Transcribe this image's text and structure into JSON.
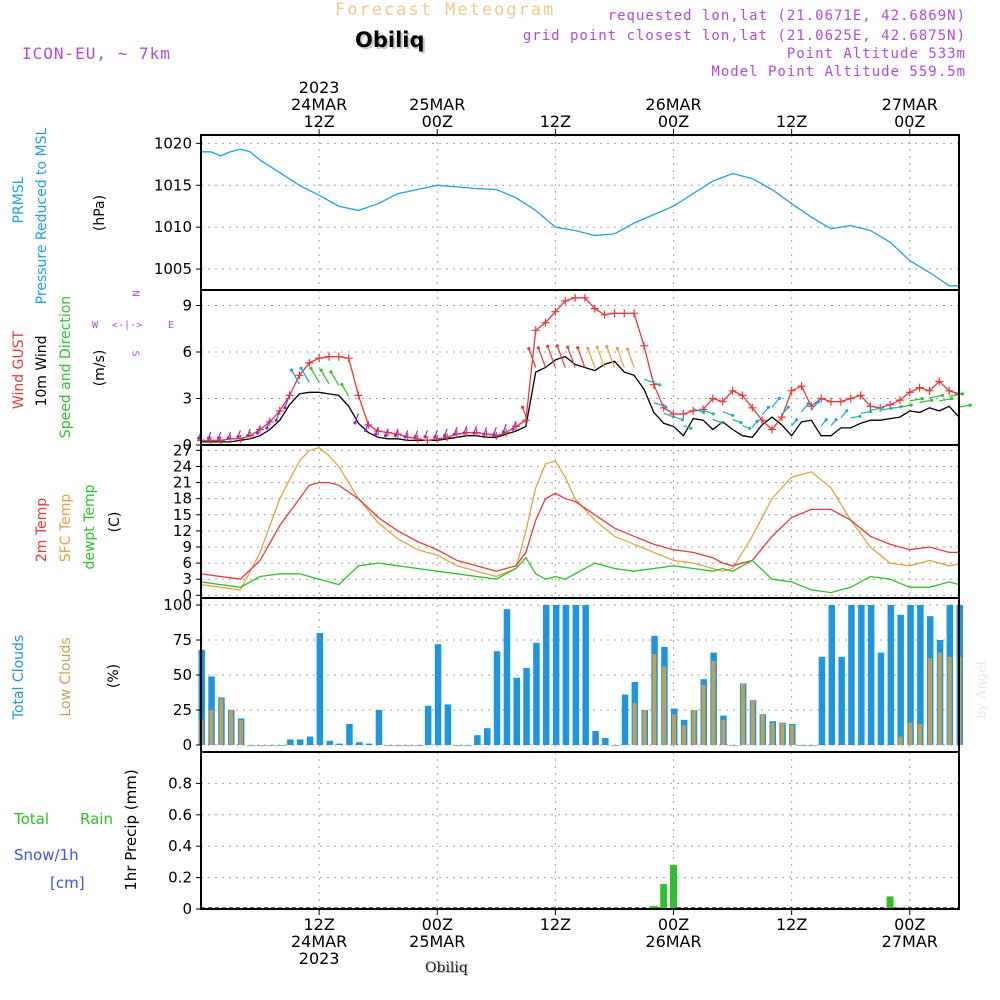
{
  "header": {
    "forecast_label": "Forecast Meteogram",
    "station": "Obiliq",
    "model": "ICON-EU, ~ 7km",
    "requested": "requested lon,lat (21.0671E, 42.6869N)",
    "gridpoint": "grid point closest lon,lat (21.0625E, 42.6875N)",
    "point_alt": "Point Altitude 533m",
    "model_alt": "Model Point Altitude 559.5m",
    "footer_station": "Obiliq",
    "watermark": "by Angel",
    "colors": {
      "forecast": "#f2c888",
      "meta": "#b04ae0"
    }
  },
  "time_axis": {
    "top": [
      {
        "h": 12,
        "lines": [
          "2023",
          "24MAR",
          "12Z"
        ]
      },
      {
        "h": 24,
        "lines": [
          "25MAR",
          "00Z"
        ]
      },
      {
        "h": 36,
        "lines": [
          "12Z"
        ]
      },
      {
        "h": 48,
        "lines": [
          "26MAR",
          "00Z"
        ]
      },
      {
        "h": 60,
        "lines": [
          "12Z"
        ]
      },
      {
        "h": 72,
        "lines": [
          "27MAR",
          "00Z"
        ]
      }
    ],
    "bottom": [
      {
        "h": 12,
        "lines": [
          "12Z",
          "24MAR",
          "2023"
        ]
      },
      {
        "h": 24,
        "lines": [
          "00Z",
          "25MAR"
        ]
      },
      {
        "h": 36,
        "lines": [
          "12Z"
        ]
      },
      {
        "h": 48,
        "lines": [
          "00Z",
          "26MAR"
        ]
      },
      {
        "h": 60,
        "lines": [
          "12Z"
        ]
      },
      {
        "h": 72,
        "lines": [
          "00Z",
          "27MAR"
        ]
      }
    ]
  },
  "panel_labels": {
    "pressure": {
      "l1": "PRMSL",
      "l2": "Pressure Reduced to MSL",
      "unit": "(hPa)"
    },
    "wind": {
      "gust": "Wind GUST",
      "w10": "10m Wind",
      "spd": "Speed and Direction",
      "unit": "(m/s)",
      "compass": {
        "n": "N",
        "s": "S",
        "w": "W",
        "e": "E",
        "arrows": "<-|->"
      }
    },
    "temp": {
      "t2m": "2m Temp",
      "sfc": "SFC Temp",
      "dew": "dewpt Temp",
      "unit": "(C)"
    },
    "clouds": {
      "total": "Total Clouds",
      "low": "Low Clouds",
      "unit": "(%)"
    },
    "precip": {
      "unit": "1hr Precip (mm)",
      "total": "Total",
      "rain": "Rain",
      "snow": "Snow/1h",
      "snow_unit": "[cm]"
    }
  },
  "colors": {
    "pressure": "#1ba1e2",
    "gust": "#e8383a",
    "wind10": "#000000",
    "t2m": "#e8383a",
    "sfc": "#e0a43c",
    "dew": "#2ec02e",
    "total_cloud": "#1c96e0",
    "low_cloud": "#c8a050",
    "rain": "#2ec02e",
    "snow": "#3c50f0",
    "compass": "#b04ae0",
    "grid": "#a0a0a0"
  },
  "chart_data": [
    {
      "type": "line",
      "name": "pressure",
      "title": "PRMSL Pressure Reduced to MSL",
      "ylabel": "(hPa)",
      "ylim": [
        1002.5,
        1021
      ],
      "yticks": [
        1005,
        1010,
        1015,
        1020
      ],
      "x": [
        0,
        1,
        2,
        3,
        4,
        5,
        6,
        8,
        10,
        12,
        14,
        16,
        18,
        20,
        22,
        24,
        26,
        28,
        30,
        32,
        34,
        36,
        38,
        40,
        42,
        44,
        46,
        48,
        50,
        52,
        54,
        56,
        58,
        60,
        62,
        64,
        66,
        68,
        70,
        72,
        74,
        76,
        77
      ],
      "values": [
        1019,
        1019,
        1018.5,
        1019,
        1019.3,
        1019,
        1018,
        1016.5,
        1015,
        1013.8,
        1012.5,
        1012,
        1012.8,
        1014,
        1014.5,
        1015,
        1014.8,
        1014.6,
        1014.5,
        1013.5,
        1012,
        1010,
        1009.6,
        1009,
        1009.2,
        1010.5,
        1011.5,
        1012.5,
        1014,
        1015.5,
        1016.4,
        1015.8,
        1014.5,
        1012.8,
        1011.2,
        1009.8,
        1010.2,
        1009.6,
        1008.2,
        1006,
        1004.6,
        1003,
        1003
      ]
    },
    {
      "type": "line",
      "name": "wind",
      "title": "Wind GUST / 10m Wind Speed and Direction",
      "ylabel": "(m/s)",
      "ylim": [
        0,
        10
      ],
      "yticks": [
        0,
        3,
        6,
        9
      ],
      "x": [
        0,
        1,
        2,
        3,
        4,
        5,
        6,
        7,
        8,
        9,
        10,
        11,
        12,
        13,
        14,
        15,
        16,
        17,
        18,
        19,
        20,
        21,
        22,
        23,
        24,
        25,
        26,
        27,
        28,
        29,
        30,
        31,
        32,
        33,
        34,
        35,
        36,
        37,
        38,
        39,
        40,
        41,
        42,
        43,
        44,
        45,
        46,
        47,
        48,
        49,
        50,
        51,
        52,
        53,
        54,
        55,
        56,
        57,
        58,
        59,
        60,
        61,
        62,
        63,
        64,
        65,
        66,
        67,
        68,
        69,
        70,
        71,
        72,
        73,
        74,
        75,
        76,
        77
      ],
      "series": [
        {
          "name": "Wind GUST",
          "values": [
            0.3,
            0.3,
            0.3,
            0.4,
            0.4,
            0.6,
            1,
            1.5,
            2.2,
            3.2,
            4.5,
            5.3,
            5.6,
            5.7,
            5.7,
            5.6,
            3.2,
            1.3,
            0.9,
            0.8,
            0.7,
            0.5,
            0.4,
            0.3,
            0.4,
            0.5,
            0.7,
            0.8,
            0.8,
            0.7,
            0.6,
            0.8,
            1.2,
            1.6,
            7.4,
            7.9,
            8.6,
            9.3,
            9.5,
            9.5,
            8.8,
            8.4,
            8.5,
            8.5,
            8.5,
            6.4,
            3.9,
            2.4,
            2.0,
            2.0,
            2.2,
            2.3,
            3.0,
            2.8,
            3.5,
            3.2,
            2.4,
            1.6,
            1.0,
            1.8,
            3.5,
            3.8,
            2.5,
            3.0,
            2.8,
            2.8,
            3.0,
            3.2,
            2.5,
            2.4,
            2.6,
            2.9,
            3.4,
            3.7,
            3.5,
            4.1,
            3.5,
            3.3
          ]
        },
        {
          "name": "10m Wind",
          "values": [
            0.2,
            0.2,
            0.2,
            0.2,
            0.3,
            0.4,
            0.6,
            1,
            1.6,
            2.6,
            3.3,
            3.4,
            3.4,
            3.3,
            3.2,
            2.5,
            1.4,
            0.8,
            0.5,
            0.4,
            0.4,
            0.3,
            0.3,
            0.3,
            0.3,
            0.4,
            0.5,
            0.6,
            0.6,
            0.5,
            0.5,
            0.7,
            0.9,
            1.2,
            4.7,
            5,
            5.5,
            5.7,
            5.2,
            5.0,
            4.8,
            5.2,
            5.4,
            4.7,
            4.5,
            3.6,
            2.1,
            1.4,
            1.2,
            0.6,
            1.7,
            1.6,
            1.0,
            1.5,
            1.0,
            0.6,
            0.5,
            1.3,
            1.8,
            1.3,
            0.6,
            1.5,
            1.6,
            0.6,
            0.6,
            1.1,
            1.1,
            1.4,
            1.6,
            1.6,
            1.7,
            1.8,
            2.2,
            2.1,
            2.4,
            2.2,
            2.5,
            1.8
          ]
        }
      ]
    },
    {
      "type": "line",
      "name": "temperature",
      "title": "2m Temp / SFC Temp / dewpt Temp",
      "ylabel": "(C)",
      "ylim": [
        -0.5,
        28
      ],
      "yticks": [
        0,
        3,
        6,
        9,
        12,
        15,
        18,
        21,
        24,
        27
      ],
      "x": [
        0,
        2,
        4,
        6,
        8,
        10,
        11,
        12,
        13,
        14,
        16,
        18,
        20,
        22,
        24,
        26,
        28,
        30,
        32,
        33,
        34,
        35,
        36,
        37,
        38,
        40,
        42,
        44,
        46,
        48,
        50,
        52,
        53,
        54,
        56,
        58,
        60,
        62,
        64,
        66,
        68,
        70,
        72,
        74,
        76,
        77
      ],
      "series": [
        {
          "name": "2m Temp",
          "values": [
            4,
            3.5,
            3,
            6.5,
            13,
            18,
            20.5,
            21,
            21,
            20.5,
            18,
            14.5,
            12,
            10,
            8.5,
            6.5,
            5.5,
            4.5,
            5.5,
            8,
            14,
            18,
            19,
            18,
            17.5,
            15,
            12.5,
            11,
            9.5,
            8.5,
            8,
            7,
            6,
            5.5,
            6.5,
            11,
            14.5,
            16,
            16,
            14,
            11,
            9.5,
            8.5,
            9,
            8,
            8
          ]
        },
        {
          "name": "SFC Temp",
          "values": [
            2,
            1.5,
            1,
            8,
            18,
            25,
            27,
            27.5,
            26,
            24,
            18,
            13.5,
            10.5,
            8.5,
            7.5,
            5.5,
            4.5,
            3.5,
            5,
            12,
            20,
            24.5,
            25,
            22,
            18,
            14,
            11,
            9.5,
            8,
            6.5,
            6,
            5,
            4.5,
            5,
            11,
            18,
            22,
            23,
            20,
            14,
            9,
            6,
            5.5,
            6.5,
            5.5,
            5.8
          ]
        },
        {
          "name": "dewpt Temp",
          "values": [
            2.5,
            2,
            1.5,
            3.5,
            4,
            4,
            3.5,
            3,
            2.5,
            2,
            5.5,
            6,
            5.5,
            5,
            4.5,
            4,
            3.5,
            3,
            5,
            7,
            4,
            3,
            3.5,
            3,
            4,
            6,
            5,
            4.5,
            5,
            5.5,
            5,
            4.5,
            5,
            4.5,
            6.5,
            3,
            2.5,
            1,
            0.5,
            1.5,
            3.5,
            3,
            1.5,
            1.5,
            2.5,
            2
          ]
        }
      ]
    },
    {
      "type": "bar",
      "name": "clouds",
      "title": "Total Clouds / Low Clouds",
      "ylabel": "(%)",
      "ylim": [
        -5,
        105
      ],
      "yticks": [
        0,
        25,
        50,
        75,
        100
      ],
      "x": [
        0,
        1,
        2,
        3,
        4,
        5,
        6,
        7,
        8,
        9,
        10,
        11,
        12,
        13,
        14,
        15,
        16,
        17,
        18,
        19,
        20,
        21,
        22,
        23,
        24,
        25,
        26,
        27,
        28,
        29,
        30,
        31,
        32,
        33,
        34,
        35,
        36,
        37,
        38,
        39,
        40,
        41,
        42,
        43,
        44,
        45,
        46,
        47,
        48,
        49,
        50,
        51,
        52,
        53,
        54,
        55,
        56,
        57,
        58,
        59,
        60,
        61,
        62,
        63,
        64,
        65,
        66,
        67,
        68,
        69,
        70,
        71,
        72,
        73,
        74,
        75,
        76,
        77
      ],
      "series": [
        {
          "name": "Total Clouds",
          "values": [
            68,
            49,
            34,
            25,
            19,
            0,
            0,
            0,
            0,
            4,
            4,
            6,
            80,
            3,
            1,
            15,
            2,
            1,
            25,
            0,
            0,
            0,
            0,
            28,
            72,
            29,
            0,
            0,
            7,
            12,
            67,
            97,
            48,
            55,
            73,
            100,
            100,
            100,
            100,
            100,
            10,
            5,
            0,
            36,
            45,
            25,
            78,
            70,
            26,
            18,
            25,
            47,
            66,
            21,
            0,
            44,
            32,
            22,
            17,
            16,
            15,
            0,
            0,
            63,
            100,
            63,
            100,
            100,
            100,
            66,
            100,
            93,
            100,
            100,
            92,
            75,
            100,
            100
          ]
        },
        {
          "name": "Low Clouds",
          "values": [
            18,
            25,
            33,
            25,
            18,
            0,
            0,
            0,
            0,
            0,
            0,
            0,
            0,
            0,
            0,
            0,
            0,
            0,
            0,
            0,
            0,
            0,
            0,
            0,
            0,
            0,
            0,
            0,
            0,
            0,
            0,
            0,
            0,
            0,
            0,
            0,
            0,
            0,
            0,
            0,
            0,
            0,
            0,
            0,
            30,
            25,
            65,
            56,
            22,
            14,
            25,
            43,
            60,
            18,
            0,
            44,
            32,
            22,
            16,
            16,
            14,
            0,
            0,
            0,
            0,
            0,
            0,
            0,
            0,
            0,
            0,
            6,
            16,
            15,
            62,
            66,
            63,
            63
          ]
        }
      ]
    },
    {
      "type": "bar",
      "name": "precip",
      "title": "1hr Precip (mm)",
      "ylabel": "1hr Precip (mm)",
      "ylim": [
        0,
        1
      ],
      "yticks": [
        0,
        0.2,
        0.4,
        0.6,
        0.8
      ],
      "x": [
        46,
        47,
        48,
        70,
        71
      ],
      "series": [
        {
          "name": "Total Rain",
          "values": [
            0.02,
            0.16,
            0.28,
            0.08,
            0.01
          ]
        }
      ]
    }
  ]
}
